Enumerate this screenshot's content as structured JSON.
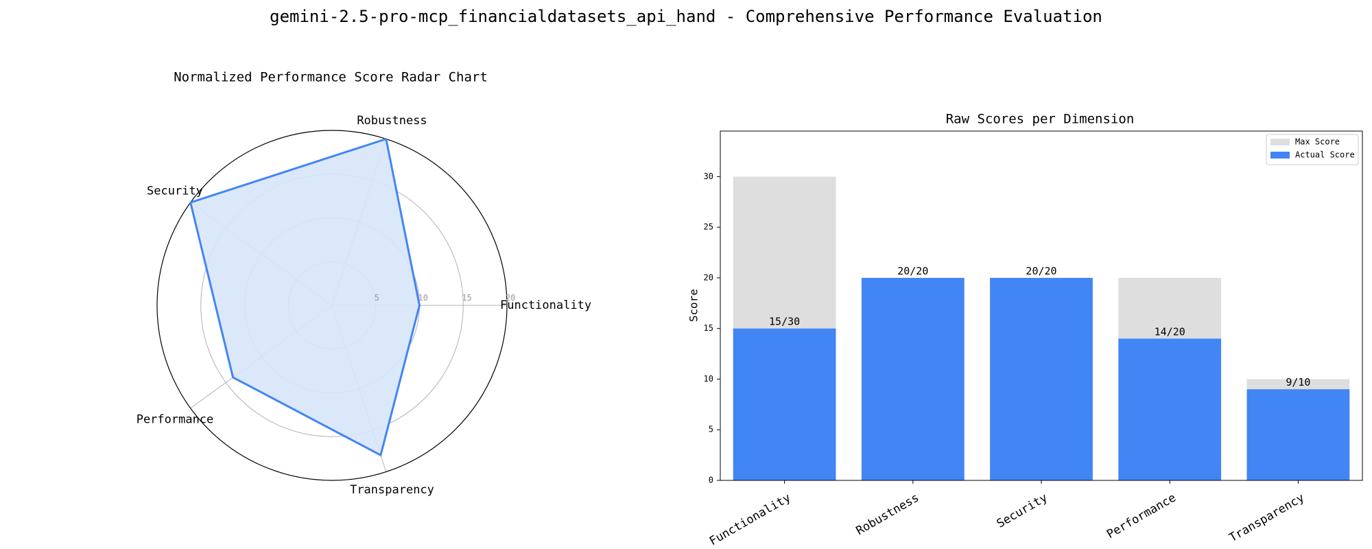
{
  "figure_title": "gemini-2.5-pro-mcp_financialdatasets_api_hand - Comprehensive Performance Evaluation",
  "colors": {
    "actual": "#4285f4",
    "max": "#dedede",
    "radar_fill": "#d7e5fa",
    "grid": "#b0b0b0"
  },
  "chart_data": [
    {
      "type": "radar",
      "title": "Normalized Performance Score Radar Chart",
      "axes": [
        "Functionality",
        "Robustness",
        "Security",
        "Performance",
        "Transparency"
      ],
      "values": [
        10,
        20,
        20,
        14,
        18
      ],
      "r_ticks": [
        "5",
        "10",
        "15",
        "20"
      ],
      "rlim": [
        0,
        20
      ]
    },
    {
      "type": "bar",
      "title": "Raw Scores per Dimension",
      "ylabel": "Score",
      "categories": [
        "Functionality",
        "Robustness",
        "Security",
        "Performance",
        "Transparency"
      ],
      "series": [
        {
          "name": "Max Score",
          "values": [
            30,
            20,
            20,
            20,
            10
          ]
        },
        {
          "name": "Actual Score",
          "values": [
            15,
            20,
            20,
            14,
            9
          ]
        }
      ],
      "bar_labels": [
        "15/30",
        "20/20",
        "20/20",
        "14/20",
        "9/10"
      ],
      "yticks": [
        "0",
        "5",
        "10",
        "15",
        "20",
        "25",
        "30"
      ],
      "ylim": [
        0,
        34.5
      ],
      "legend": "upper right"
    }
  ]
}
